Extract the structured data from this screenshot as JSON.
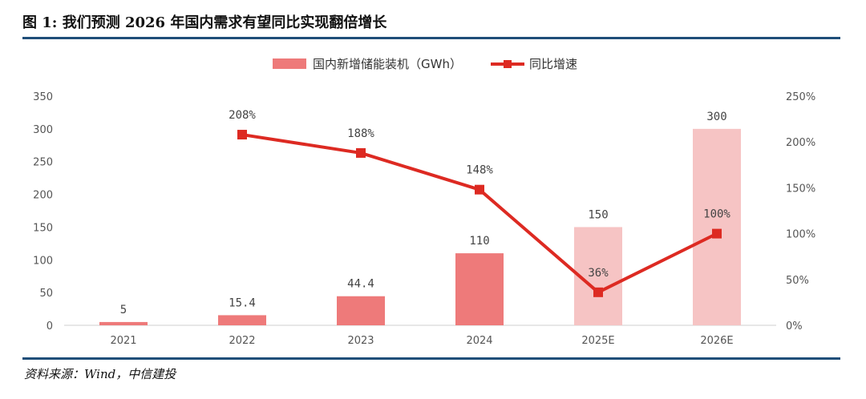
{
  "header": {
    "title": "图 1: 我们预测 2026 年国内需求有望同比实现翻倍增长"
  },
  "footer": {
    "source": "资料来源：Wind，中信建投"
  },
  "colors": {
    "bar": "#ee7a7a",
    "bar_estimate": "#f6c4c4",
    "line": "#dd2a22",
    "rule": "#1f4e79"
  },
  "chart_data": {
    "type": "bar",
    "categories": [
      "2021",
      "2022",
      "2023",
      "2024",
      "2025E",
      "2026E"
    ],
    "series": [
      {
        "name": "国内新增储能装机（GWh）",
        "type": "bar",
        "axis": "left",
        "values": [
          5,
          15.4,
          44.4,
          110,
          150,
          300
        ],
        "labels": [
          "5",
          "15.4",
          "44.4",
          "110",
          "150",
          "300"
        ]
      },
      {
        "name": "同比增速",
        "type": "line",
        "axis": "right",
        "values": [
          null,
          208,
          188,
          148,
          36,
          100
        ],
        "labels": [
          "",
          "208%",
          "188%",
          "148%",
          "36%",
          "100%"
        ]
      }
    ],
    "estimate_categories": [
      "2025E",
      "2026E"
    ],
    "y_left": {
      "lim": [
        0,
        350
      ],
      "ticks": [
        "0",
        "50",
        "100",
        "150",
        "200",
        "250",
        "300",
        "350"
      ]
    },
    "y_right": {
      "lim": [
        0,
        250
      ],
      "ticks": [
        "0%",
        "50%",
        "100%",
        "150%",
        "200%",
        "250%"
      ]
    },
    "legend": {
      "position": "top-center",
      "bar_label": "国内新增储能装机（GWh）",
      "line_label": "同比增速"
    }
  }
}
